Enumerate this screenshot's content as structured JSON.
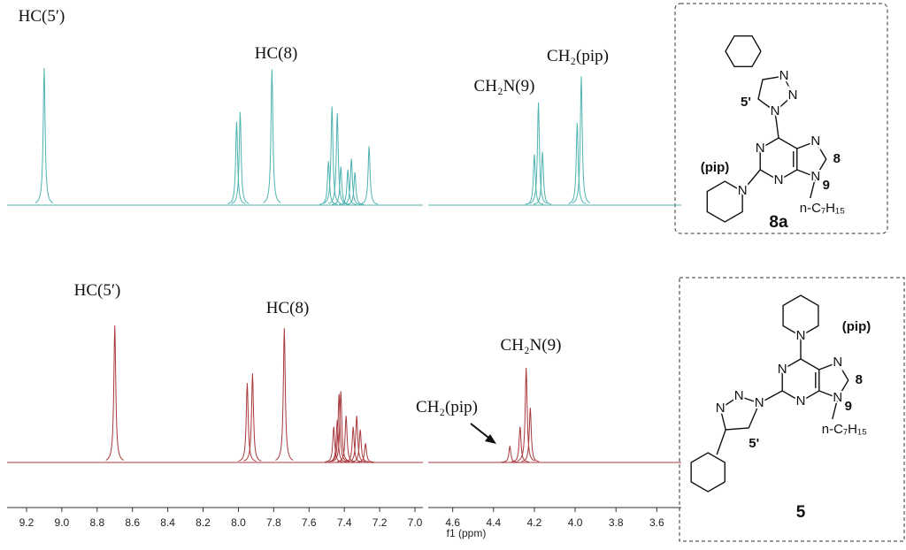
{
  "chart_data": {
    "type": "nmr",
    "xlabel": "f1 (ppm)",
    "x_segments": [
      {
        "xlim": [
          9.31,
          6.955
        ],
        "xticks": [
          9.2,
          {
            "value": 9,
            "label": "9.0"
          },
          8.8,
          8.6,
          8.4,
          8.2,
          {
            "value": 8,
            "label": "8.0"
          },
          7.8,
          7.6,
          7.4,
          7.2,
          {
            "value": 7,
            "label": "7.0"
          }
        ]
      },
      {
        "xlim": [
          4.72,
          3.48
        ],
        "xticks": [
          4.6,
          4.4,
          4.2,
          {
            "value": 4,
            "label": "4.0"
          },
          3.8,
          3.6
        ]
      }
    ],
    "ylim": [
      0,
      100
    ],
    "series": [
      {
        "color": "#4fb3b0",
        "x": [
          9.1,
          8.01,
          7.99,
          7.81,
          7.49,
          7.47,
          7.44,
          7.42,
          7.38,
          7.36,
          7.34,
          7.26,
          4.2,
          4.18,
          4.16,
          3.99,
          3.97
        ],
        "values": [
          100,
          61,
          68,
          99,
          32,
          72,
          67,
          28,
          26,
          34,
          24,
          43,
          37,
          75,
          39,
          60,
          94
        ],
        "annotations": [
          "HC(5′)",
          "HC(8)",
          "CH₂N(9)",
          "CH₂(pip)"
        ]
      },
      {
        "color": "#a8383c",
        "x": [
          8.7,
          7.95,
          7.92,
          7.74,
          7.46,
          7.44,
          7.43,
          7.42,
          7.39,
          7.35,
          7.33,
          7.31,
          7.28,
          4.32,
          4.27,
          4.24,
          4.22
        ],
        "values": [
          100,
          58,
          65,
          98,
          26,
          31,
          50,
          52,
          34,
          26,
          34,
          24,
          14,
          12,
          26,
          69,
          40
        ],
        "annotations": [
          "HC(5′)",
          "HC(8)",
          "CH₂N(9)",
          "CH₂(pip)"
        ]
      }
    ]
  },
  "structures": [
    {
      "compound": "8a",
      "atom": "N",
      "piperidine": "(pip)",
      "triazole_position": "5'",
      "c8": "8",
      "n9": "9",
      "chain": "n-C₇H₁₅"
    },
    {
      "compound": "5",
      "atom": "N",
      "piperidine": "(pip)",
      "triazole_position": "5'",
      "c8": "8",
      "n9": "9",
      "chain": "n-C₇H₁₅"
    }
  ]
}
